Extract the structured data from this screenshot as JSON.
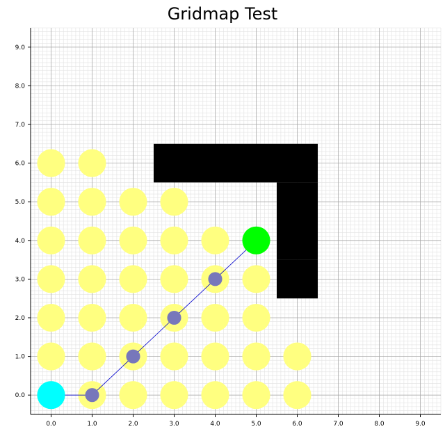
{
  "chart_data": {
    "type": "scatter",
    "title": "Gridmap Test",
    "xlabel": "",
    "ylabel": "",
    "xlim": [
      -0.5,
      9.5
    ],
    "ylim": [
      -0.5,
      9.5
    ],
    "grid": "major and minor",
    "xticks": [
      "0.0",
      "1.0",
      "2.0",
      "3.0",
      "4.0",
      "5.0",
      "6.0",
      "7.0",
      "8.0",
      "9.0"
    ],
    "yticks": [
      "0.0",
      "1.0",
      "2.0",
      "3.0",
      "4.0",
      "5.0",
      "6.0",
      "7.0",
      "8.0",
      "9.0"
    ],
    "explored_color": "#ffff80",
    "start_color": "#00ffff",
    "goal_color": "#00ff00",
    "path_color": "#7777bb",
    "line_color": "#0000cc",
    "obstacle_color": "#000000",
    "explored": [
      [
        0,
        0
      ],
      [
        1,
        0
      ],
      [
        2,
        0
      ],
      [
        3,
        0
      ],
      [
        4,
        0
      ],
      [
        5,
        0
      ],
      [
        6,
        0
      ],
      [
        0,
        1
      ],
      [
        1,
        1
      ],
      [
        2,
        1
      ],
      [
        3,
        1
      ],
      [
        4,
        1
      ],
      [
        5,
        1
      ],
      [
        6,
        1
      ],
      [
        0,
        2
      ],
      [
        1,
        2
      ],
      [
        2,
        2
      ],
      [
        3,
        2
      ],
      [
        4,
        2
      ],
      [
        5,
        2
      ],
      [
        0,
        3
      ],
      [
        1,
        3
      ],
      [
        2,
        3
      ],
      [
        3,
        3
      ],
      [
        4,
        3
      ],
      [
        5,
        3
      ],
      [
        0,
        4
      ],
      [
        1,
        4
      ],
      [
        2,
        4
      ],
      [
        3,
        4
      ],
      [
        4,
        4
      ],
      [
        0,
        5
      ],
      [
        1,
        5
      ],
      [
        2,
        5
      ],
      [
        3,
        5
      ],
      [
        0,
        6
      ],
      [
        1,
        6
      ]
    ],
    "path": [
      [
        0,
        0
      ],
      [
        1,
        0
      ],
      [
        2,
        1
      ],
      [
        3,
        2
      ],
      [
        4,
        3
      ],
      [
        5,
        4
      ]
    ],
    "start": [
      0,
      0
    ],
    "goal": [
      5,
      4
    ],
    "obstacles": [
      [
        3,
        6
      ],
      [
        4,
        6
      ],
      [
        5,
        6
      ],
      [
        6,
        6
      ],
      [
        6,
        5
      ],
      [
        6,
        4
      ],
      [
        6,
        3
      ]
    ]
  }
}
